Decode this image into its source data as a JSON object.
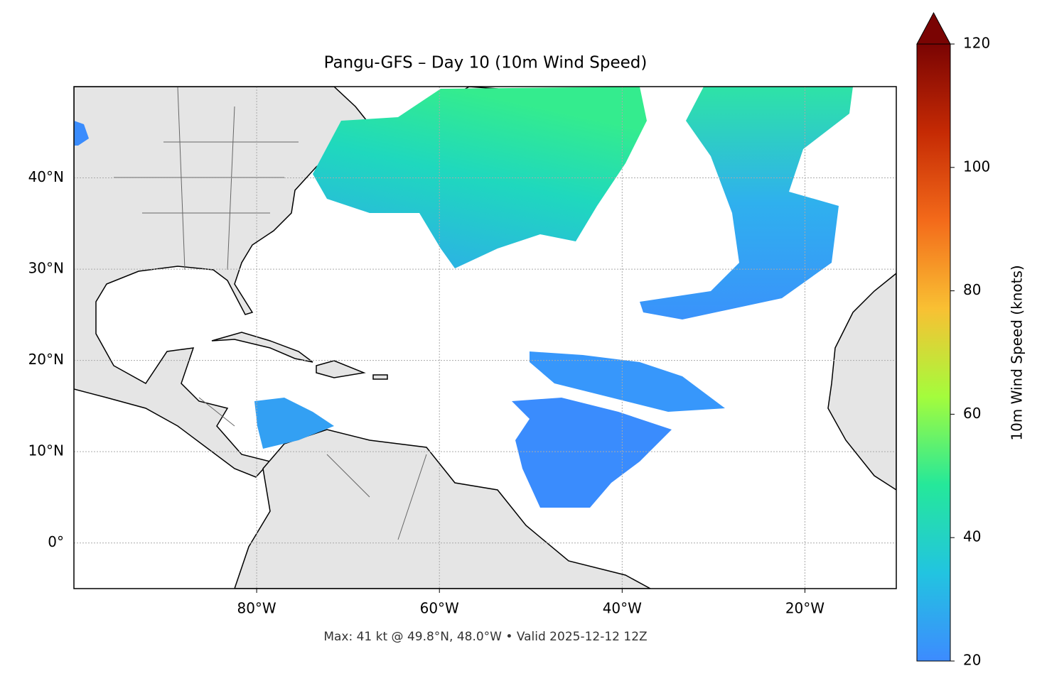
{
  "chart_data": {
    "type": "map",
    "title": "Pangu-GFS – Day 10 (10m Wind Speed)",
    "subtitle": "Max: 41 kt @ 49.8°N, 48.0°W • Valid 2025-12-12 12Z",
    "xlim": [
      -100,
      -10
    ],
    "ylim": [
      -5,
      50
    ],
    "xticks": [
      {
        "value": -80,
        "label": "80°W"
      },
      {
        "value": -60,
        "label": "60°W"
      },
      {
        "value": -40,
        "label": "40°W"
      },
      {
        "value": -20,
        "label": "20°W"
      }
    ],
    "yticks": [
      {
        "value": 0,
        "label": "0°"
      },
      {
        "value": 10,
        "label": "10°N"
      },
      {
        "value": 20,
        "label": "20°N"
      },
      {
        "value": 30,
        "label": "30°N"
      },
      {
        "value": 40,
        "label": "40°N"
      }
    ],
    "grid": true,
    "colorbar": {
      "label": "10m Wind Speed (knots)",
      "lim": [
        20,
        120
      ],
      "ticks": [
        20,
        40,
        60,
        80,
        100,
        120
      ],
      "colors": [
        "#3d8bff",
        "#22c4e0",
        "#25e89a",
        "#a4fc3c",
        "#f9c033",
        "#f36a1a",
        "#c52a04",
        "#7a0403"
      ]
    }
  }
}
